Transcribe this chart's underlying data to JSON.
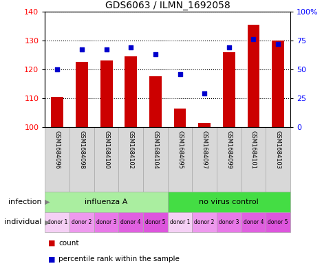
{
  "title": "GDS6063 / ILMN_1692058",
  "samples": [
    "GSM1684096",
    "GSM1684098",
    "GSM1684100",
    "GSM1684102",
    "GSM1684104",
    "GSM1684095",
    "GSM1684097",
    "GSM1684099",
    "GSM1684101",
    "GSM1684103"
  ],
  "counts": [
    110.5,
    122.5,
    123.0,
    124.5,
    117.5,
    106.5,
    101.5,
    126.0,
    135.5,
    130.0
  ],
  "percentiles": [
    50,
    67,
    67,
    69,
    63,
    46,
    29,
    69,
    76,
    72
  ],
  "ylim_left": [
    100,
    140
  ],
  "ylim_right": [
    0,
    100
  ],
  "yticks_left": [
    100,
    110,
    120,
    130,
    140
  ],
  "yticks_right": [
    0,
    25,
    50,
    75,
    100
  ],
  "ytick_labels_right": [
    "0",
    "25",
    "50",
    "75",
    "100%"
  ],
  "bar_color": "#cc0000",
  "dot_color": "#0000cc",
  "infection_groups": [
    {
      "label": "influenza A",
      "start": 0,
      "end": 5,
      "color": "#aaeea0"
    },
    {
      "label": "no virus control",
      "start": 5,
      "end": 10,
      "color": "#44dd44"
    }
  ],
  "individual_labels": [
    "donor 1",
    "donor 2",
    "donor 3",
    "donor 4",
    "donor 5",
    "donor 1",
    "donor 2",
    "donor 3",
    "donor 4",
    "donor 5"
  ],
  "individual_colors": [
    "#f5d0f5",
    "#ee99ee",
    "#e878e8",
    "#e060e0",
    "#dd55dd",
    "#f5d0f5",
    "#ee99ee",
    "#e878e8",
    "#e060e0",
    "#dd55dd"
  ],
  "legend_count_label": "count",
  "legend_percentile_label": "percentile rank within the sample",
  "infection_label": "infection",
  "individual_label": "individual",
  "title_fontsize": 10,
  "tick_fontsize": 8,
  "label_fontsize": 8,
  "annotation_fontsize": 8,
  "sample_fontsize": 6
}
